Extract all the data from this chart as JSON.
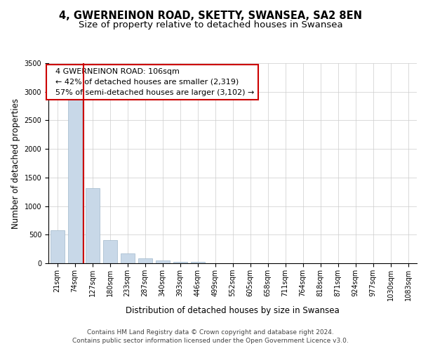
{
  "title": "4, GWERNEINON ROAD, SKETTY, SWANSEA, SA2 8EN",
  "subtitle": "Size of property relative to detached houses in Swansea",
  "xlabel": "Distribution of detached houses by size in Swansea",
  "ylabel": "Number of detached properties",
  "categories": [
    "21sqm",
    "74sqm",
    "127sqm",
    "180sqm",
    "233sqm",
    "287sqm",
    "340sqm",
    "393sqm",
    "446sqm",
    "499sqm",
    "552sqm",
    "605sqm",
    "658sqm",
    "711sqm",
    "764sqm",
    "818sqm",
    "871sqm",
    "924sqm",
    "977sqm",
    "1030sqm",
    "1083sqm"
  ],
  "values": [
    580,
    2950,
    1310,
    400,
    175,
    90,
    45,
    30,
    30,
    0,
    0,
    0,
    0,
    0,
    0,
    0,
    0,
    0,
    0,
    0,
    0
  ],
  "bar_color": "#c8d8e8",
  "bar_edge_color": "#a0b8cc",
  "vline_x": 1.5,
  "vline_color": "#cc0000",
  "annotation_box_color": "#cc0000",
  "annotation_text": "  4 GWERNEINON ROAD: 106sqm\n  ← 42% of detached houses are smaller (2,319)\n  57% of semi-detached houses are larger (3,102) →",
  "ylim": [
    0,
    3500
  ],
  "yticks": [
    0,
    500,
    1000,
    1500,
    2000,
    2500,
    3000,
    3500
  ],
  "footer_line1": "Contains HM Land Registry data © Crown copyright and database right 2024.",
  "footer_line2": "Contains public sector information licensed under the Open Government Licence v3.0.",
  "bg_color": "#ffffff",
  "grid_color": "#cccccc",
  "title_fontsize": 10.5,
  "subtitle_fontsize": 9.5,
  "axis_label_fontsize": 8.5,
  "tick_fontsize": 7,
  "footer_fontsize": 6.5,
  "annotation_fontsize": 8
}
